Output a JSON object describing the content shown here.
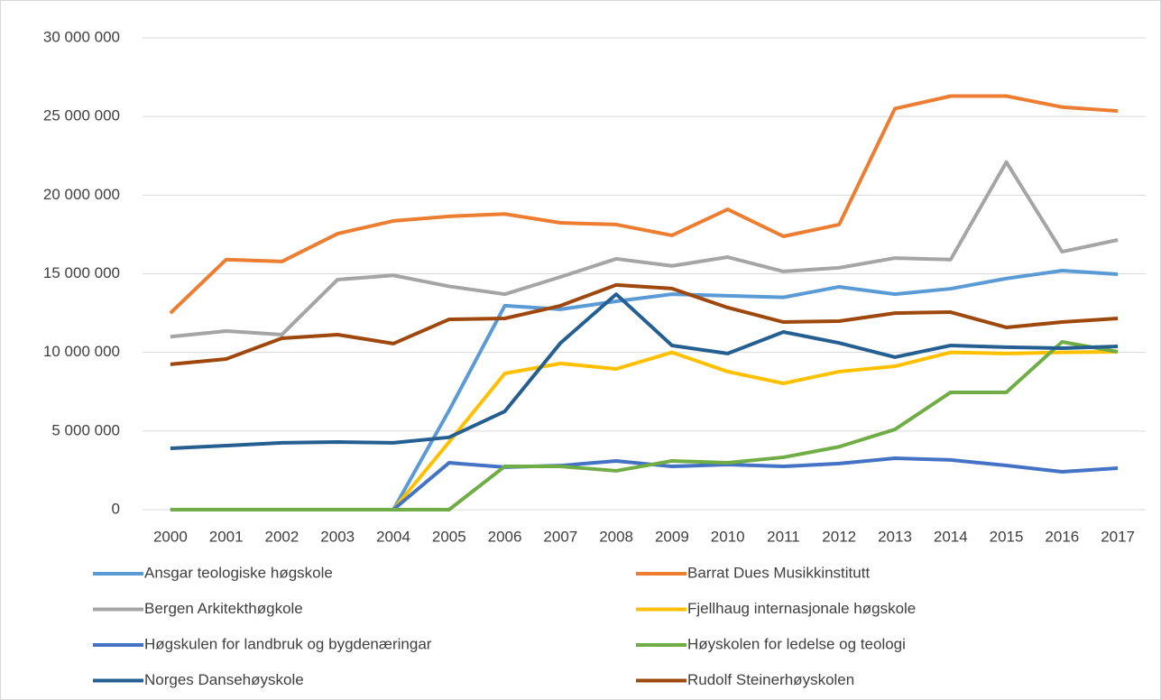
{
  "chart_data": {
    "type": "line",
    "categories": [
      "2000",
      "2001",
      "2002",
      "2003",
      "2004",
      "2005",
      "2006",
      "2007",
      "2008",
      "2009",
      "2010",
      "2011",
      "2012",
      "2013",
      "2014",
      "2015",
      "2016",
      "2017"
    ],
    "ylim": [
      0,
      30000000
    ],
    "yticks": [
      0,
      {
        "value": 5000000,
        "label": "5 000 000"
      },
      {
        "value": 10000000,
        "label": "10 000 000"
      },
      {
        "value": 15000000,
        "label": "15 000 000"
      },
      {
        "value": 20000000,
        "label": "20 000 000"
      },
      {
        "value": 25000000,
        "label": "25 000 000"
      },
      {
        "value": 30000000,
        "label": "30 000 000"
      }
    ],
    "grid": true,
    "legend": "bottom",
    "series": [
      {
        "name": "Ansgar teologiske høgskole",
        "color": "#5b9bd5",
        "values": [
          0,
          0,
          0,
          0,
          0,
          6300000,
          12970000,
          12740000,
          13250000,
          13700000,
          13600000,
          13500000,
          14170000,
          13700000,
          14050000,
          14700000,
          15200000,
          14970000
        ]
      },
      {
        "name": "Barrat Dues Musikkinstitutt",
        "color": "#ed7d31",
        "values": [
          12500000,
          15900000,
          15780000,
          17550000,
          18360000,
          18650000,
          18800000,
          18240000,
          18130000,
          17440000,
          19100000,
          17380000,
          18130000,
          25500000,
          26300000,
          26300000,
          25600000,
          25350000
        ]
      },
      {
        "name": "Bergen Arkitekthøgkole",
        "color": "#a5a5a5",
        "values": [
          11000000,
          11360000,
          11130000,
          14630000,
          14900000,
          14200000,
          13700000,
          14800000,
          15950000,
          15500000,
          16060000,
          15150000,
          15380000,
          16000000,
          15900000,
          22100000,
          16400000,
          17150000
        ]
      },
      {
        "name": "Fjellhaug internasjonale høgskole",
        "color": "#ffc000",
        "values": [
          0,
          0,
          0,
          0,
          0,
          4300000,
          8660000,
          9300000,
          8950000,
          10000000,
          8780000,
          8030000,
          8780000,
          9120000,
          10000000,
          9930000,
          10000000,
          10040000
        ]
      },
      {
        "name": "Høgskulen for landbruk og bygdenæringar",
        "color": "#4472c4",
        "values": [
          0,
          0,
          0,
          0,
          0,
          2980000,
          2700000,
          2800000,
          3100000,
          2750000,
          2870000,
          2750000,
          2930000,
          3270000,
          3160000,
          2810000,
          2410000,
          2640000
        ]
      },
      {
        "name": "Høyskolen for ledelse og teologi",
        "color": "#70ad47",
        "values": [
          0,
          0,
          0,
          0,
          0,
          0,
          2750000,
          2750000,
          2470000,
          3100000,
          2980000,
          3330000,
          4000000,
          5100000,
          7460000,
          7460000,
          10670000,
          10040000
        ]
      },
      {
        "name": "Norges Dansehøyskole",
        "color": "#255e91",
        "values": [
          3900000,
          4070000,
          4250000,
          4300000,
          4250000,
          4600000,
          6250000,
          10600000,
          13700000,
          10440000,
          9930000,
          11300000,
          10600000,
          9700000,
          10440000,
          10330000,
          10270000,
          10380000
        ]
      },
      {
        "name": "Rudolf Steinerhøyskolen",
        "color": "#9e480e",
        "values": [
          9240000,
          9580000,
          10900000,
          11130000,
          10560000,
          12100000,
          12160000,
          12970000,
          14290000,
          14060000,
          12850000,
          11930000,
          11990000,
          12500000,
          12560000,
          11590000,
          11930000,
          12160000
        ]
      }
    ]
  }
}
